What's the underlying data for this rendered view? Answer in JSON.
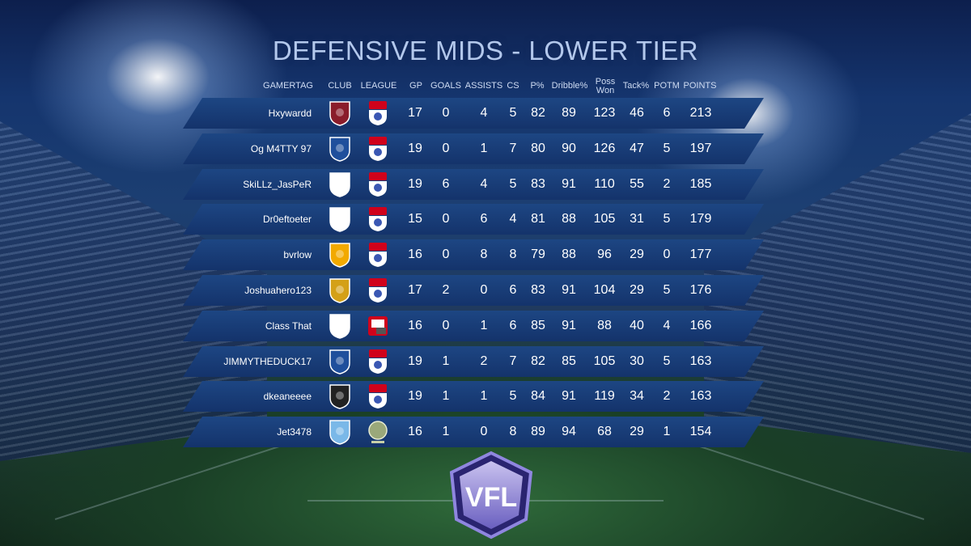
{
  "title": "DEFENSIVE MIDS - LOWER TIER",
  "headers": {
    "gamertag": "GAMERTAG",
    "club": "CLUB",
    "league": "LEAGUE",
    "gp": "GP",
    "goals": "GOALS",
    "assists": "ASSISTS",
    "cs": "CS",
    "pass": "P%",
    "dribble": "Dribble%",
    "poss_line1": "Poss",
    "poss_line2": "Won",
    "tack": "Tack%",
    "potm": "POTM",
    "points": "POINTS"
  },
  "rows": [
    {
      "gamertag": "Hxywardd",
      "gp": "17",
      "goals": "0",
      "assists": "4",
      "cs": "5",
      "pass": "82",
      "dribble": "89",
      "poss": "123",
      "tack": "46",
      "potm": "6",
      "points": "213",
      "club_icon": "northampton-crest-icon",
      "club_color": "#8a1c2b",
      "league_icon": "skybet-efl-icon"
    },
    {
      "gamertag": "Og M4TTY 97",
      "gp": "19",
      "goals": "0",
      "assists": "1",
      "cs": "7",
      "pass": "80",
      "dribble": "90",
      "poss": "126",
      "tack": "47",
      "potm": "5",
      "points": "197",
      "club_icon": "blackburn-crest-icon",
      "club_color": "#1f4f9c",
      "league_icon": "skybet-efl-icon"
    },
    {
      "gamertag": "SkiLLz_JasPeR",
      "gp": "19",
      "goals": "6",
      "assists": "4",
      "cs": "5",
      "pass": "83",
      "dribble": "91",
      "poss": "110",
      "tack": "55",
      "potm": "2",
      "points": "185",
      "club_icon": "preston-crest-icon",
      "club_color": "#ffffff",
      "league_icon": "skybet-efl-icon"
    },
    {
      "gamertag": "Dr0eftoeter",
      "gp": "15",
      "goals": "0",
      "assists": "6",
      "cs": "4",
      "pass": "81",
      "dribble": "88",
      "poss": "105",
      "tack": "31",
      "potm": "5",
      "points": "179",
      "club_icon": "derby-crest-icon",
      "club_color": "#ffffff",
      "league_icon": "skybet-efl-icon"
    },
    {
      "gamertag": "bvrlow",
      "gp": "16",
      "goals": "0",
      "assists": "8",
      "cs": "8",
      "pass": "79",
      "dribble": "88",
      "poss": "96",
      "tack": "29",
      "potm": "0",
      "points": "177",
      "club_icon": "mansfield-crest-icon",
      "club_color": "#f2a900",
      "league_icon": "skybet-efl-icon"
    },
    {
      "gamertag": "Joshuahero123",
      "gp": "17",
      "goals": "2",
      "assists": "0",
      "cs": "6",
      "pass": "83",
      "dribble": "91",
      "poss": "104",
      "tack": "29",
      "potm": "5",
      "points": "176",
      "club_icon": "southport-crest-icon",
      "club_color": "#d4a017",
      "league_icon": "skybet-efl-icon"
    },
    {
      "gamertag": "Class That",
      "gp": "16",
      "goals": "0",
      "assists": "1",
      "cs": "6",
      "pass": "85",
      "dribble": "91",
      "poss": "88",
      "tack": "40",
      "potm": "4",
      "points": "166",
      "club_icon": "sv-sandhausen-crest-icon",
      "club_color": "#ffffff",
      "league_icon": "bundesliga-2-icon"
    },
    {
      "gamertag": "JIMMYTHEDUCK17",
      "gp": "19",
      "goals": "1",
      "assists": "2",
      "cs": "7",
      "pass": "82",
      "dribble": "85",
      "poss": "105",
      "tack": "30",
      "potm": "5",
      "points": "163",
      "club_icon": "ipswich-crest-icon",
      "club_color": "#1f4f9c",
      "league_icon": "skybet-efl-icon"
    },
    {
      "gamertag": "dkeaneeee",
      "gp": "19",
      "goals": "1",
      "assists": "1",
      "cs": "5",
      "pass": "84",
      "dribble": "91",
      "poss": "119",
      "tack": "34",
      "potm": "2",
      "points": "163",
      "club_icon": "notts-county-crest-icon",
      "club_color": "#222222",
      "league_icon": "skybet-efl-icon"
    },
    {
      "gamertag": "Jet3478",
      "gp": "16",
      "goals": "1",
      "assists": "0",
      "cs": "8",
      "pass": "89",
      "dribble": "94",
      "poss": "68",
      "tack": "29",
      "potm": "1",
      "points": "154",
      "club_icon": "usl-crest-icon",
      "club_color": "#7ab8e8",
      "league_icon": "usl-league-icon"
    }
  ],
  "logo": "VFL",
  "colors": {
    "row_top": "#1d4683",
    "row_bottom": "#14336b",
    "title": "#b3c8ec",
    "skybet_red": "#d0021b"
  }
}
